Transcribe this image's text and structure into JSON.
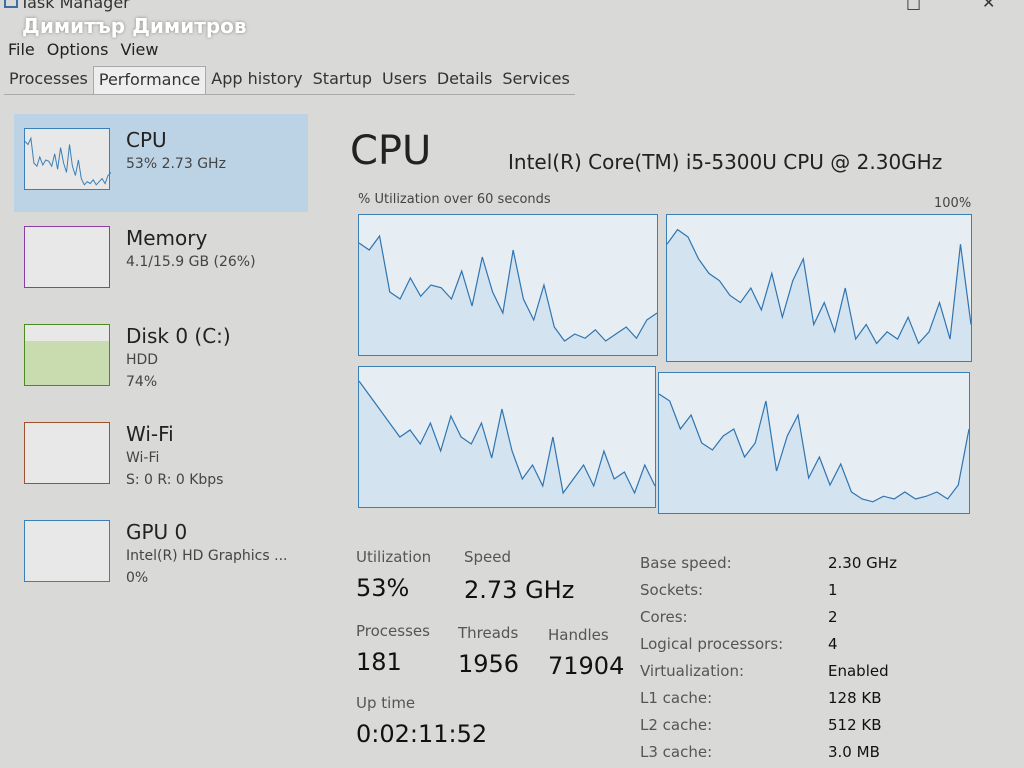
{
  "window": {
    "title": "Task Manager",
    "watermark": "Димитър Димитров",
    "maximize": "□",
    "close": "✕"
  },
  "menu": [
    "File",
    "Options",
    "View"
  ],
  "tabs": [
    "Processes",
    "Performance",
    "App history",
    "Startup",
    "Users",
    "Details",
    "Services"
  ],
  "active_tab": "Performance",
  "sidebar": [
    {
      "name": "CPU",
      "lines": [
        "53% 2.73 GHz"
      ],
      "color": "#3b7fb8",
      "selected": true
    },
    {
      "name": "Memory",
      "lines": [
        "4.1/15.9 GB (26%)"
      ],
      "color": "#8b3fa0"
    },
    {
      "name": "Disk 0 (C:)",
      "lines": [
        "HDD",
        "74%"
      ],
      "color": "#4d8a1f",
      "level": 0.74
    },
    {
      "name": "Wi-Fi",
      "lines": [
        "Wi-Fi",
        "S: 0 R: 0 Kbps"
      ],
      "color": "#a0522d"
    },
    {
      "name": "GPU 0",
      "lines": [
        "Intel(R) HD Graphics ...",
        "0%"
      ],
      "color": "#3b7fb8"
    }
  ],
  "cpu": {
    "title": "CPU",
    "model": "Intel(R) Core(TM) i5-5300U CPU @ 2.30GHz",
    "graph_caption": "% Utilization over 60 seconds",
    "graph_max": "100%",
    "cores": [
      [
        80,
        75,
        85,
        45,
        40,
        55,
        42,
        50,
        48,
        40,
        60,
        35,
        70,
        45,
        30,
        75,
        40,
        25,
        50,
        20,
        10,
        15,
        12,
        18,
        10,
        15,
        20,
        12,
        25,
        30
      ],
      [
        80,
        90,
        85,
        70,
        60,
        55,
        45,
        40,
        50,
        35,
        60,
        30,
        55,
        70,
        25,
        40,
        20,
        50,
        15,
        25,
        12,
        20,
        15,
        30,
        12,
        20,
        40,
        15,
        80,
        25
      ],
      [
        90,
        80,
        70,
        60,
        50,
        55,
        45,
        60,
        40,
        65,
        50,
        45,
        60,
        35,
        70,
        40,
        20,
        30,
        15,
        50,
        10,
        20,
        30,
        15,
        40,
        20,
        25,
        10,
        30,
        15
      ],
      [
        85,
        80,
        60,
        70,
        50,
        45,
        55,
        60,
        40,
        50,
        80,
        30,
        55,
        70,
        25,
        40,
        20,
        35,
        15,
        10,
        8,
        12,
        10,
        15,
        10,
        12,
        15,
        10,
        20,
        60
      ]
    ],
    "stats": {
      "utilization_label": "Utilization",
      "utilization": "53%",
      "speed_label": "Speed",
      "speed": "2.73 GHz",
      "processes_label": "Processes",
      "processes": "181",
      "threads_label": "Threads",
      "threads": "1956",
      "handles_label": "Handles",
      "handles": "71904",
      "uptime_label": "Up time",
      "uptime": "0:02:11:52"
    },
    "details": [
      [
        "Base speed:",
        "2.30 GHz"
      ],
      [
        "Sockets:",
        "1"
      ],
      [
        "Cores:",
        "2"
      ],
      [
        "Logical processors:",
        "4"
      ],
      [
        "Virtualization:",
        "Enabled"
      ],
      [
        "L1 cache:",
        "128 KB"
      ],
      [
        "L2 cache:",
        "512 KB"
      ],
      [
        "L3 cache:",
        "3.0 MB"
      ]
    ]
  }
}
